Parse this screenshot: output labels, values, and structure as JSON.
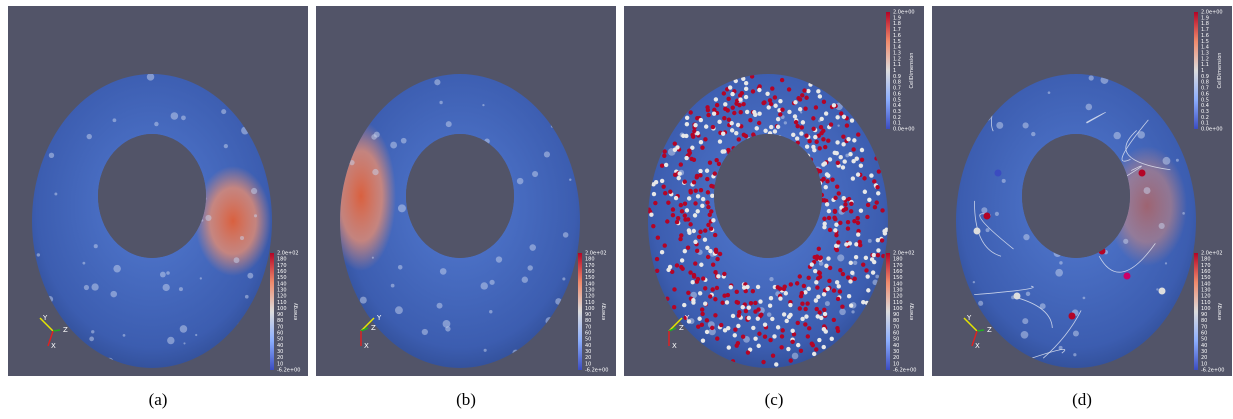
{
  "panels": [
    {
      "caption": "(a)",
      "axes": [
        "Y",
        "Z",
        "X"
      ],
      "colorbars": [
        {
          "title": "energy",
          "max": "2.0e+02",
          "min": "-6.2e+00",
          "ticks": [
            "180",
            "170",
            "160",
            "150",
            "140",
            "130",
            "120",
            "110",
            "100",
            "90",
            "80",
            "70",
            "60",
            "50",
            "40",
            "30",
            "20",
            "10"
          ]
        }
      ]
    },
    {
      "caption": "(b)",
      "axes": [
        "Y",
        "Z",
        "X"
      ],
      "colorbars": [
        {
          "title": "energy",
          "max": "2.0e+02",
          "min": "-6.2e+00",
          "ticks": [
            "180",
            "170",
            "160",
            "150",
            "140",
            "130",
            "120",
            "110",
            "100",
            "90",
            "80",
            "70",
            "60",
            "50",
            "40",
            "30",
            "20",
            "10"
          ]
        }
      ]
    },
    {
      "caption": "(c)",
      "axes": [
        "Y",
        "Z",
        "X"
      ],
      "colorbars": [
        {
          "title": "CellDimension",
          "max": "2.0e+00",
          "min": "0.0e+00",
          "ticks": [
            "1.9",
            "1.8",
            "1.7",
            "1.6",
            "1.5",
            "1.4",
            "1.3",
            "1.2",
            "1.1",
            "1",
            "0.9",
            "0.8",
            "0.7",
            "0.6",
            "0.5",
            "0.4",
            "0.3",
            "0.2",
            "0.1"
          ]
        },
        {
          "title": "energy",
          "max": "2.0e+02",
          "min": "-6.2e+00",
          "ticks": [
            "180",
            "170",
            "160",
            "150",
            "140",
            "130",
            "120",
            "110",
            "100",
            "90",
            "80",
            "70",
            "60",
            "50",
            "40",
            "30",
            "20",
            "10"
          ]
        }
      ]
    },
    {
      "caption": "(d)",
      "axes": [
        "Y",
        "Z",
        "X"
      ],
      "colorbars": [
        {
          "title": "CellDimension",
          "max": "2.0e+00",
          "min": "0.0e+00",
          "ticks": [
            "1.9",
            "1.8",
            "1.7",
            "1.6",
            "1.5",
            "1.4",
            "1.3",
            "1.2",
            "1.1",
            "1",
            "0.9",
            "0.8",
            "0.7",
            "0.6",
            "0.5",
            "0.4",
            "0.3",
            "0.2",
            "0.1"
          ]
        },
        {
          "title": "energy",
          "max": "2.0e+02",
          "min": "-6.2e+00",
          "ticks": [
            "180",
            "170",
            "160",
            "150",
            "140",
            "130",
            "120",
            "110",
            "100",
            "90",
            "80",
            "70",
            "60",
            "50",
            "40",
            "30",
            "20",
            "10"
          ]
        }
      ]
    }
  ]
}
